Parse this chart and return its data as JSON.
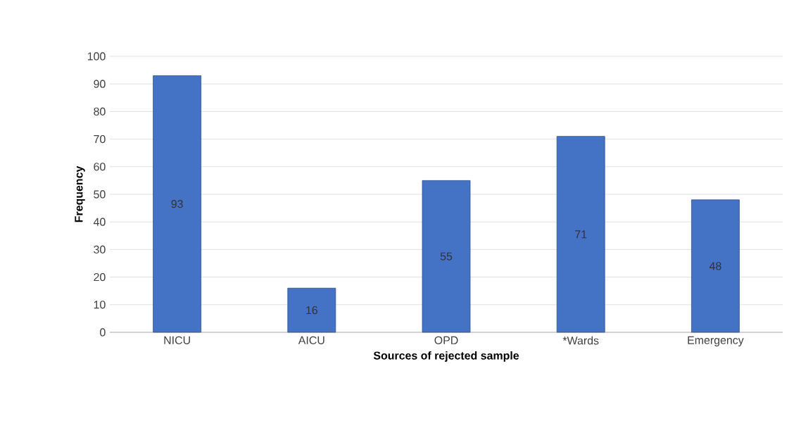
{
  "chart_data": {
    "type": "bar",
    "xlabel": "Sources of rejected sample",
    "ylabel": "Frequency",
    "categories": [
      "NICU",
      "AICU",
      "OPD",
      "*Wards",
      "Emergency"
    ],
    "values": [
      93,
      16,
      55,
      71,
      48
    ],
    "color": "#4472c4",
    "ylim": [
      0,
      100
    ],
    "yticks": [
      0,
      10,
      20,
      30,
      40,
      50,
      60,
      70,
      80,
      90,
      100
    ],
    "grid": "y",
    "data_labels": true
  }
}
